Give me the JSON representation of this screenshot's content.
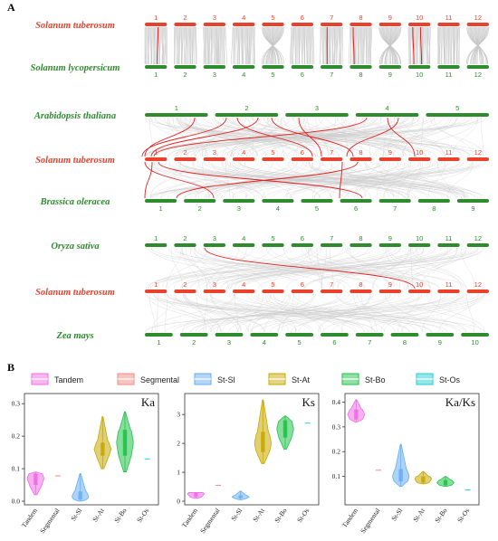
{
  "panel_a": {
    "label": "A",
    "colors": {
      "st": "#e8412c",
      "other": "#2e8b2e",
      "link": "#c8c8c8",
      "highlight": "#e02020"
    },
    "tracks": [
      {
        "name": "Solanum tuberosum",
        "color": "#e8412c",
        "numpos": "above",
        "chromosomes": [
          "1",
          "2",
          "3",
          "4",
          "5",
          "6",
          "7",
          "8",
          "9",
          "10",
          "11",
          "12"
        ]
      },
      {
        "name": "Solanum lycopersicum",
        "color": "#2e8b2e",
        "numpos": "below",
        "chromosomes": [
          "1",
          "2",
          "3",
          "4",
          "5",
          "6",
          "7",
          "8",
          "9",
          "10",
          "11",
          "12"
        ]
      },
      {
        "name": "Arabidopsis thaliana",
        "color": "#2e8b2e",
        "numpos": "above",
        "chromosomes": [
          "1",
          "2",
          "3",
          "4",
          "5"
        ]
      },
      {
        "name": "Solanum tuberosum",
        "color": "#e8412c",
        "numpos": "above",
        "chromosomes": [
          "1",
          "2",
          "3",
          "4",
          "5",
          "6",
          "7",
          "8",
          "9",
          "10",
          "11",
          "12"
        ]
      },
      {
        "name": "Brassica oleracea",
        "color": "#2e8b2e",
        "numpos": "below",
        "chromosomes": [
          "1",
          "2",
          "3",
          "4",
          "5",
          "6",
          "7",
          "8",
          "9"
        ]
      },
      {
        "name": "Oryza sativa",
        "color": "#2e8b2e",
        "numpos": "above",
        "chromosomes": [
          "1",
          "2",
          "3",
          "4",
          "5",
          "6",
          "7",
          "8",
          "9",
          "10",
          "11",
          "12"
        ]
      },
      {
        "name": "Solanum tuberosum",
        "color": "#e8412c",
        "numpos": "above",
        "chromosomes": [
          "1",
          "2",
          "3",
          "4",
          "5",
          "6",
          "7",
          "8",
          "9",
          "10",
          "11",
          "12"
        ]
      },
      {
        "name": "Zea mays",
        "color": "#2e8b2e",
        "numpos": "below",
        "chromosomes": [
          "1",
          "2",
          "3",
          "4",
          "5",
          "6",
          "7",
          "8",
          "9",
          "10"
        ]
      }
    ]
  },
  "panel_b": {
    "label": "B",
    "legend": [
      {
        "name": "Tandem",
        "color": "#f06de6"
      },
      {
        "name": "Segmental",
        "color": "#f28b82"
      },
      {
        "name": "St-Sl",
        "color": "#6aaef2"
      },
      {
        "name": "St-At",
        "color": "#c9a800"
      },
      {
        "name": "St-Bo",
        "color": "#22c24a"
      },
      {
        "name": "St-Os",
        "color": "#23cfd6"
      }
    ],
    "categories": [
      "Tandem",
      "Segmental",
      "St-Sl",
      "St-At",
      "St-Bo",
      "St-Os"
    ]
  },
  "chart_data": [
    {
      "type": "violin",
      "title": "Ka",
      "categories": [
        "Tandem",
        "Segmental",
        "St-Sl",
        "St-At",
        "St-Bo",
        "St-Os"
      ],
      "ylim": [
        0,
        0.32
      ],
      "yticks": [
        "0.0",
        "0.1",
        "0.2",
        "0.3"
      ],
      "series": [
        {
          "name": "Tandem",
          "min": 0.02,
          "q1": 0.05,
          "median": 0.07,
          "q3": 0.085,
          "max": 0.09
        },
        {
          "name": "Segmental",
          "min": 0.078,
          "q1": 0.078,
          "median": 0.078,
          "q3": 0.078,
          "max": 0.078
        },
        {
          "name": "St-Sl",
          "min": 0.0,
          "q1": 0.005,
          "median": 0.015,
          "q3": 0.03,
          "max": 0.085
        },
        {
          "name": "St-At",
          "min": 0.1,
          "q1": 0.14,
          "median": 0.16,
          "q3": 0.18,
          "max": 0.26
        },
        {
          "name": "St-Bo",
          "min": 0.09,
          "q1": 0.14,
          "median": 0.18,
          "q3": 0.22,
          "max": 0.275
        },
        {
          "name": "St-Os",
          "min": 0.13,
          "q1": 0.13,
          "median": 0.13,
          "q3": 0.13,
          "max": 0.13
        }
      ]
    },
    {
      "type": "violin",
      "title": "Ks",
      "categories": [
        "Tandem",
        "Segmental",
        "St-Sl",
        "St-At",
        "St-Bo",
        "St-Os"
      ],
      "ylim": [
        0,
        3.6
      ],
      "yticks": [
        "0",
        "1",
        "2",
        "3"
      ],
      "series": [
        {
          "name": "Tandem",
          "min": 0.1,
          "q1": 0.15,
          "median": 0.25,
          "q3": 0.3,
          "max": 0.3
        },
        {
          "name": "Segmental",
          "min": 0.55,
          "q1": 0.55,
          "median": 0.55,
          "q3": 0.55,
          "max": 0.55
        },
        {
          "name": "St-Sl",
          "min": 0.05,
          "q1": 0.1,
          "median": 0.15,
          "q3": 0.2,
          "max": 0.35
        },
        {
          "name": "St-At",
          "min": 1.3,
          "q1": 1.7,
          "median": 2.0,
          "q3": 2.4,
          "max": 3.5
        },
        {
          "name": "St-Bo",
          "min": 1.8,
          "q1": 2.2,
          "median": 2.5,
          "q3": 2.8,
          "max": 2.95
        },
        {
          "name": "St-Os",
          "min": 2.7,
          "q1": 2.7,
          "median": 2.7,
          "q3": 2.7,
          "max": 2.7
        }
      ]
    },
    {
      "type": "violin",
      "title": "Ka/Ks",
      "categories": [
        "Tandem",
        "Segmental",
        "St-Sl",
        "St-At",
        "St-Bo",
        "St-Os"
      ],
      "ylim": [
        0,
        0.42
      ],
      "yticks": [
        "0.1",
        "0.2",
        "0.3",
        "0.4"
      ],
      "series": [
        {
          "name": "Tandem",
          "min": 0.32,
          "q1": 0.33,
          "median": 0.35,
          "q3": 0.37,
          "max": 0.41
        },
        {
          "name": "Segmental",
          "min": 0.125,
          "q1": 0.125,
          "median": 0.125,
          "q3": 0.125,
          "max": 0.125
        },
        {
          "name": "St-Sl",
          "min": 0.06,
          "q1": 0.08,
          "median": 0.1,
          "q3": 0.13,
          "max": 0.23
        },
        {
          "name": "St-At",
          "min": 0.07,
          "q1": 0.075,
          "median": 0.09,
          "q3": 0.1,
          "max": 0.12
        },
        {
          "name": "St-Bo",
          "min": 0.06,
          "q1": 0.065,
          "median": 0.075,
          "q3": 0.085,
          "max": 0.1
        },
        {
          "name": "St-Os",
          "min": 0.045,
          "q1": 0.045,
          "median": 0.045,
          "q3": 0.045,
          "max": 0.045
        }
      ]
    }
  ]
}
